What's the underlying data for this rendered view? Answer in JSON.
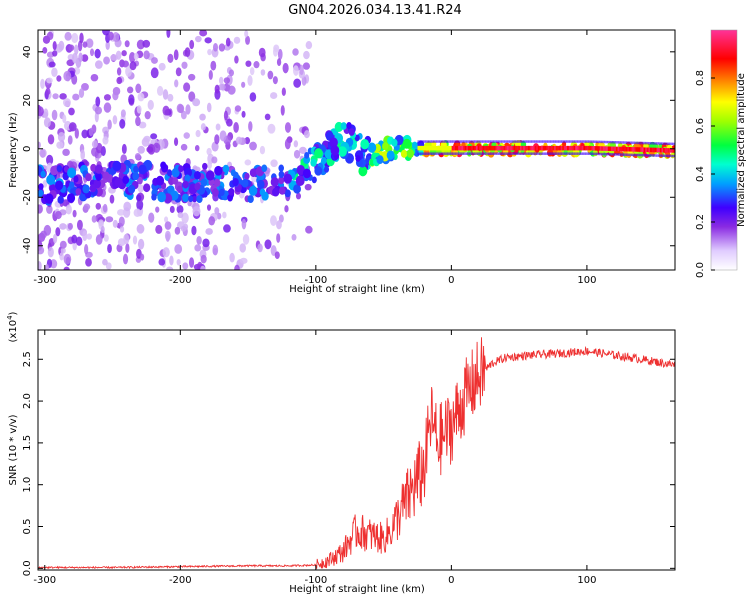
{
  "title": "GN04.2026.034.13.41.R24",
  "colors": {
    "snr_line": "#ee3030",
    "background": "#ffffff",
    "colormap": [
      "#f2eefc",
      "#8a2be2",
      "#3f00ff",
      "#00b0ff",
      "#00ffb0",
      "#33ff00",
      "#ffff00",
      "#ff8000",
      "#ff0000",
      "#ff33cc"
    ]
  },
  "chart_data": [
    {
      "type": "heatmap",
      "name": "spectrogram",
      "xlabel": "Height of straight line (km)",
      "ylabel": "Frequency (Hz)",
      "xlim": [
        -305,
        165
      ],
      "ylim": [
        -50,
        49
      ],
      "xticks": [
        -300,
        -200,
        -100,
        0,
        100
      ],
      "xtick_labels": [
        "-300",
        "-200",
        "-100",
        "0",
        "100"
      ],
      "yticks": [
        -40,
        -20,
        0,
        20,
        40
      ],
      "ytick_labels": [
        "-40",
        "-20",
        "0",
        "20",
        "40"
      ],
      "ridge": {
        "description_points_x": [
          -300,
          -250,
          -200,
          -150,
          -120,
          -100,
          -85,
          -75,
          -65,
          -55,
          -45,
          -30,
          0,
          50,
          100,
          165
        ],
        "description_points_y": [
          -15,
          -13,
          -14,
          -14,
          -13,
          -6,
          2,
          3,
          -3,
          -2,
          0,
          0,
          0,
          0,
          0,
          -1
        ]
      },
      "colorbar": {
        "label": "Normalized spectral amplitude",
        "range": [
          0,
          1
        ],
        "ticks": [
          0.0,
          0.2,
          0.4,
          0.6,
          0.8
        ],
        "tick_labels": [
          "0.0",
          "0.2",
          "0.4",
          "0.6",
          "0.8"
        ]
      }
    },
    {
      "type": "line",
      "name": "snr",
      "xlabel": "Height of straight line (km)",
      "ylabel": "SNR (10 * v/v)",
      "scale_label": "(x10",
      "scale_exponent": "4",
      "xlim": [
        -305,
        165
      ],
      "ylim": [
        -0.02,
        2.85
      ],
      "xticks": [
        -300,
        -200,
        -100,
        0,
        100
      ],
      "xtick_labels": [
        "-300",
        "-200",
        "-100",
        "0",
        "100"
      ],
      "yticks": [
        0.0,
        0.5,
        1.0,
        1.5,
        2.0,
        2.5
      ],
      "ytick_labels": [
        "0.0",
        "0.5",
        "1.0",
        "1.5",
        "2.0",
        "2.5"
      ],
      "series": [
        {
          "name": "SNR",
          "x": [
            -305,
            -250,
            -200,
            -150,
            -120,
            -100,
            -90,
            -80,
            -70,
            -60,
            -50,
            -45,
            -40,
            -30,
            -20,
            -15,
            -10,
            0,
            10,
            20,
            30,
            40,
            60,
            80,
            100,
            120,
            140,
            165
          ],
          "y": [
            0.01,
            0.01,
            0.02,
            0.03,
            0.03,
            0.04,
            0.1,
            0.2,
            0.45,
            0.4,
            0.35,
            0.45,
            0.6,
            0.9,
            1.2,
            1.8,
            1.5,
            1.7,
            2.05,
            2.3,
            2.45,
            2.52,
            2.55,
            2.57,
            2.6,
            2.55,
            2.5,
            2.43
          ]
        }
      ]
    }
  ]
}
